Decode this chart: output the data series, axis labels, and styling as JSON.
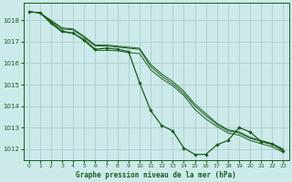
{
  "title": "Graphe pression niveau de la mer (hPa)",
  "bg_color": "#cceaea",
  "grid_color": "#b8d8d8",
  "line_color": "#1a5c1a",
  "xlim": [
    -0.5,
    23.5
  ],
  "ylim": [
    1011.5,
    1018.8
  ],
  "yticks": [
    1012,
    1013,
    1014,
    1015,
    1016,
    1017,
    1018
  ],
  "xticks": [
    0,
    1,
    2,
    3,
    4,
    5,
    6,
    7,
    8,
    9,
    10,
    11,
    12,
    13,
    14,
    15,
    16,
    17,
    18,
    19,
    20,
    21,
    22,
    23
  ],
  "series_main": [
    1018.4,
    1018.35,
    1017.9,
    1017.5,
    1017.4,
    1017.1,
    1016.65,
    1016.7,
    1016.65,
    1016.55,
    1015.1,
    1013.8,
    1013.1,
    1012.85,
    1012.05,
    1011.75,
    1011.75,
    1012.2,
    1012.4,
    1013.0,
    1012.8,
    1012.35,
    1012.25,
    1011.9
  ],
  "series_upper1": [
    1018.4,
    1018.35,
    1017.95,
    1017.6,
    1017.55,
    1017.2,
    1016.8,
    1016.8,
    1016.75,
    1016.7,
    1016.65,
    1015.85,
    1015.4,
    1015.05,
    1014.6,
    1014.0,
    1013.55,
    1013.15,
    1012.85,
    1012.75,
    1012.5,
    1012.35,
    1012.2,
    1011.95
  ],
  "series_upper2": [
    1018.4,
    1018.35,
    1018.0,
    1017.65,
    1017.6,
    1017.25,
    1016.85,
    1016.85,
    1016.8,
    1016.75,
    1016.7,
    1015.95,
    1015.5,
    1015.15,
    1014.7,
    1014.1,
    1013.65,
    1013.2,
    1012.9,
    1012.8,
    1012.55,
    1012.4,
    1012.25,
    1012.0
  ],
  "series_lower1": [
    1018.4,
    1018.35,
    1017.85,
    1017.45,
    1017.4,
    1017.05,
    1016.6,
    1016.6,
    1016.58,
    1016.5,
    1016.45,
    1015.7,
    1015.28,
    1014.95,
    1014.5,
    1013.85,
    1013.4,
    1013.05,
    1012.75,
    1012.65,
    1012.4,
    1012.25,
    1012.1,
    1011.85
  ]
}
